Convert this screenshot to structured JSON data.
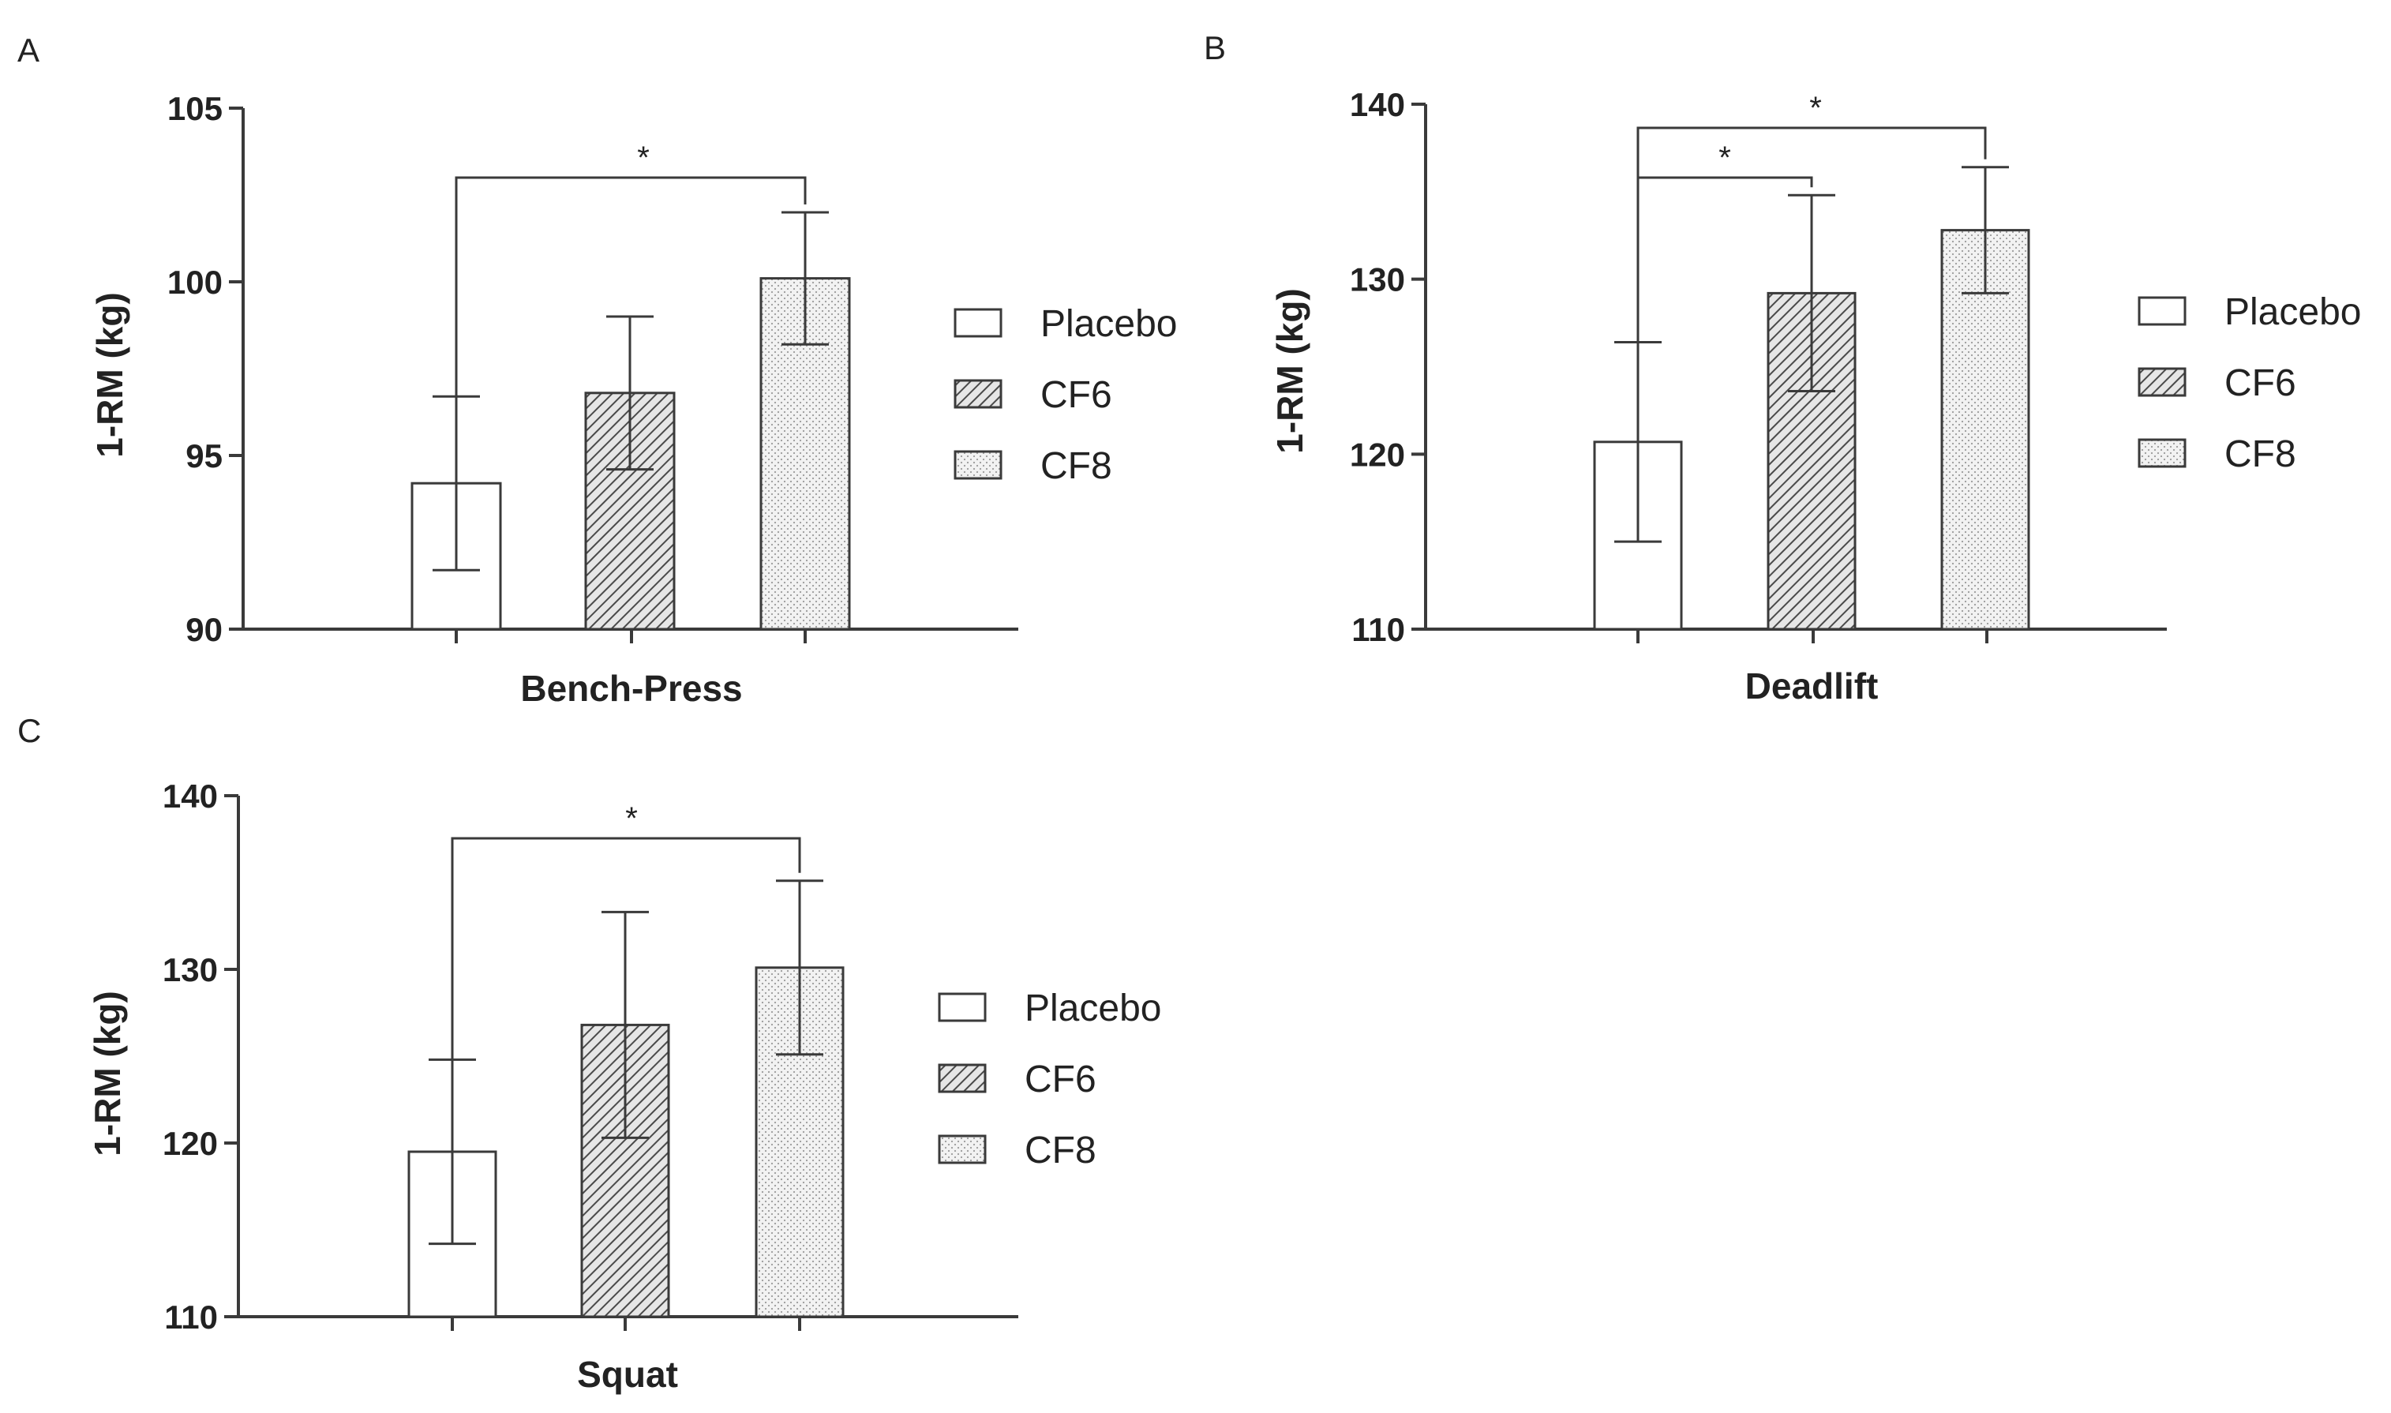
{
  "chart_data": [
    {
      "panel": "A",
      "type": "bar",
      "ylabel": "1-RM (kg)",
      "xlabel": "Bench-Press",
      "ylim": [
        90,
        105
      ],
      "yticks": [
        90,
        95,
        100,
        105
      ],
      "categories": [
        "Placebo",
        "CF6",
        "CF8"
      ],
      "values": [
        94.2,
        96.8,
        100.1
      ],
      "errors": [
        2.5,
        2.2,
        1.9
      ],
      "legend": [
        "Placebo",
        "CF6",
        "CF8"
      ],
      "significance": [
        {
          "from": "Placebo",
          "to": "CF8",
          "label": "*"
        }
      ]
    },
    {
      "panel": "B",
      "type": "bar",
      "ylabel": "1-RM (kg)",
      "xlabel": "Deadlift",
      "ylim": [
        110,
        140
      ],
      "yticks": [
        110,
        120,
        130,
        140
      ],
      "categories": [
        "Placebo",
        "CF6",
        "CF8"
      ],
      "values": [
        120.7,
        129.2,
        132.8
      ],
      "errors": [
        5.7,
        5.6,
        3.6
      ],
      "legend": [
        "Placebo",
        "CF6",
        "CF8"
      ],
      "significance": [
        {
          "from": "Placebo",
          "to": "CF8",
          "label": "*"
        },
        {
          "from": "Placebo",
          "to": "CF6",
          "label": "*"
        }
      ]
    },
    {
      "panel": "C",
      "type": "bar",
      "ylabel": "1-RM (kg)",
      "xlabel": "Squat",
      "ylim": [
        110,
        140
      ],
      "yticks": [
        110,
        120,
        130,
        140
      ],
      "categories": [
        "Placebo",
        "CF6",
        "CF8"
      ],
      "values": [
        119.5,
        126.8,
        130.1
      ],
      "errors": [
        5.3,
        6.5,
        5.0
      ],
      "legend": [
        "Placebo",
        "CF6",
        "CF8"
      ],
      "significance": [
        {
          "from": "Placebo",
          "to": "CF8",
          "label": "*"
        }
      ]
    }
  ]
}
